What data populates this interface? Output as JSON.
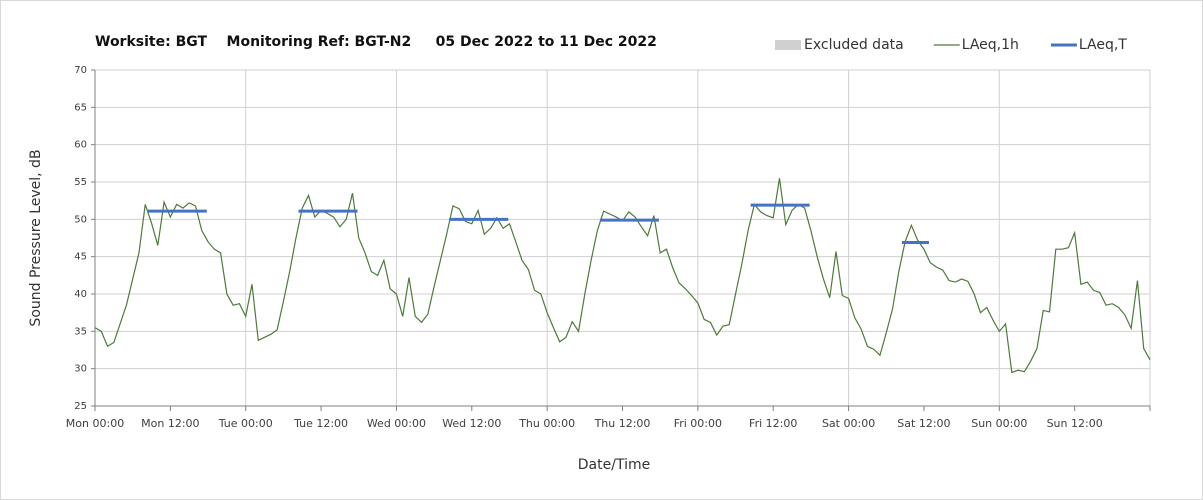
{
  "chart_data": {
    "type": "line",
    "title": "Worksite: BGT    Monitoring Ref: BGT-N2     05 Dec 2022 to 11 Dec 2022",
    "xlabel": "Date/Time",
    "ylabel": "Sound Pressure Level, dB",
    "xlim": [
      0,
      168
    ],
    "xticks": [
      {
        "value": 0,
        "label": "Mon 00:00"
      },
      {
        "value": 12,
        "label": "Mon 12:00"
      },
      {
        "value": 24,
        "label": "Tue 00:00"
      },
      {
        "value": 36,
        "label": "Tue 12:00"
      },
      {
        "value": 48,
        "label": "Wed 00:00"
      },
      {
        "value": 60,
        "label": "Wed 12:00"
      },
      {
        "value": 72,
        "label": "Thu 00:00"
      },
      {
        "value": 84,
        "label": "Thu 12:00"
      },
      {
        "value": 96,
        "label": "Fri 00:00"
      },
      {
        "value": 108,
        "label": "Fri 12:00"
      },
      {
        "value": 120,
        "label": "Sat 00:00"
      },
      {
        "value": 132,
        "label": "Sat 12:00"
      },
      {
        "value": 144,
        "label": "Sun 00:00"
      },
      {
        "value": 156,
        "label": "Sun 12:00"
      },
      {
        "value": 168,
        "label": ""
      }
    ],
    "ylim": [
      25,
      70
    ],
    "yticks": [
      25,
      30,
      35,
      40,
      45,
      50,
      55,
      60,
      65,
      70
    ],
    "grid": true,
    "legend": [
      {
        "name": "Excluded data",
        "color": "#d0d0d0"
      }
    ],
    "series": [
      {
        "name": "LAeq,1h",
        "color": "#4e7a3c",
        "x": [
          0,
          1,
          2,
          3,
          4,
          5,
          6,
          7,
          8,
          9,
          10,
          11,
          12,
          13,
          14,
          15,
          16,
          17,
          18,
          19,
          20,
          21,
          22,
          23,
          24,
          25,
          26,
          27,
          28,
          29,
          30,
          31,
          32,
          33,
          34,
          35,
          36,
          37,
          38,
          39,
          40,
          41,
          42,
          43,
          44,
          45,
          46,
          47,
          48,
          49,
          50,
          51,
          52,
          53,
          54,
          55,
          56,
          57,
          58,
          59,
          60,
          61,
          62,
          63,
          64,
          65,
          66,
          67,
          68,
          69,
          70,
          71,
          72,
          73,
          74,
          75,
          76,
          77,
          78,
          79,
          80,
          81,
          82,
          83,
          84,
          85,
          86,
          87,
          88,
          89,
          90,
          91,
          92,
          93,
          94,
          95,
          96,
          97,
          98,
          99,
          100,
          101,
          102,
          103,
          104,
          105,
          106,
          107,
          108,
          109,
          110,
          111,
          112,
          113,
          114,
          115,
          116,
          117,
          118,
          119,
          120,
          121,
          122,
          123,
          124,
          125,
          126,
          127,
          128,
          129,
          130,
          131,
          132,
          133,
          134,
          135,
          136,
          137,
          138,
          139,
          140,
          141,
          142,
          143,
          144,
          145,
          146,
          147,
          148,
          149,
          150,
          151,
          152,
          153,
          154,
          155,
          156,
          157,
          158,
          159,
          160,
          161,
          162,
          163,
          164,
          165,
          166,
          167,
          168
        ],
        "values": [
          35.5,
          35,
          33,
          33.5,
          36,
          38.5,
          42,
          45.5,
          52,
          49.5,
          46.5,
          52.3,
          50.3,
          52,
          51.5,
          52.2,
          51.8,
          48.5,
          47,
          46,
          45.5,
          40,
          38.5,
          38.7,
          37,
          41.3,
          33.8,
          34.2,
          34.6,
          35.2,
          39,
          43,
          47.5,
          51.5,
          53.2,
          50.3,
          51.2,
          50.8,
          50.3,
          49,
          50,
          53.5,
          47.5,
          45.5,
          43,
          42.5,
          44.5,
          40.7,
          40,
          37,
          42.2,
          37,
          36.2,
          37.3,
          41,
          44.5,
          48,
          51.8,
          51.4,
          49.7,
          49.4,
          51.2,
          48,
          48.8,
          50.2,
          48.8,
          49.4,
          47,
          44.5,
          43.3,
          40.5,
          40,
          37.5,
          35.5,
          33.6,
          34.2,
          36.3,
          35,
          40,
          44.5,
          48.5,
          51.1,
          50.7,
          50.3,
          49.8,
          51,
          50.3,
          49,
          47.8,
          50.5,
          45.5,
          46,
          43.5,
          41.5,
          40.7,
          39.8,
          38.8,
          36.6,
          36.2,
          34.5,
          35.7,
          35.9,
          40,
          44,
          48.5,
          52,
          51,
          50.5,
          50.2,
          55.5,
          49.3,
          51.2,
          52,
          51.5,
          48.5,
          45,
          42,
          39.5,
          45.7,
          39.8,
          39.4,
          36.8,
          35.3,
          33,
          32.6,
          31.8,
          34.8,
          38,
          43,
          47,
          49.2,
          47.2,
          46,
          44.2,
          43.6,
          43.2,
          41.8,
          41.6,
          42,
          41.7,
          40,
          37.5,
          38.2,
          36.5,
          35,
          36,
          29.5,
          29.8,
          29.6,
          31,
          32.7,
          37.8,
          37.6,
          46,
          46,
          46.2,
          48.2,
          41.3,
          41.6,
          40.5,
          40.2,
          38.5,
          38.7,
          38.2,
          37.2,
          35.4,
          41.8,
          32.7,
          31.2
        ]
      },
      {
        "name": "LAeq,T",
        "color": "#4472c4",
        "segments": [
          {
            "x": [
              8.4,
              17.8
            ],
            "value": 51.1
          },
          {
            "x": [
              32.4,
              41.8
            ],
            "value": 51.1
          },
          {
            "x": [
              56.4,
              65.8
            ],
            "value": 50.0
          },
          {
            "x": [
              80.4,
              89.8
            ],
            "value": 49.9
          },
          {
            "x": [
              104.4,
              113.8
            ],
            "value": 51.9
          },
          {
            "x": [
              128.5,
              132.8
            ],
            "value": 46.9
          }
        ]
      }
    ]
  }
}
